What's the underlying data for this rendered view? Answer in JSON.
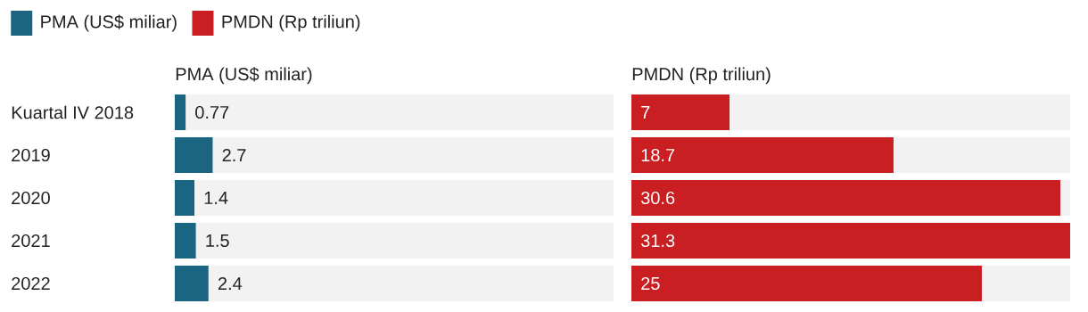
{
  "chart_data": [
    {
      "type": "bar",
      "orientation": "horizontal",
      "title": "PMA (US$ miliar)",
      "categories": [
        "Kuartal IV 2018",
        "2019",
        "2020",
        "2021",
        "2022"
      ],
      "series": [
        {
          "name": "PMA (US$ miliar)",
          "color": "#1b6482",
          "values": [
            0.77,
            2.7,
            1.4,
            1.5,
            2.4
          ]
        }
      ],
      "data_labels": true,
      "legend": "top left",
      "tick_labels": "y"
    },
    {
      "type": "bar",
      "orientation": "horizontal",
      "title": "PMDN (Rp triliun)",
      "categories": [
        null,
        null,
        null,
        null,
        null
      ],
      "series": [
        {
          "name": "PMDN (Rp triliun)",
          "color": "#c91f22",
          "values": [
            7,
            18.7,
            30.6,
            31.3,
            25
          ]
        }
      ],
      "data_labels": true,
      "legend": "top left",
      "tick_labels": false
    }
  ]
}
